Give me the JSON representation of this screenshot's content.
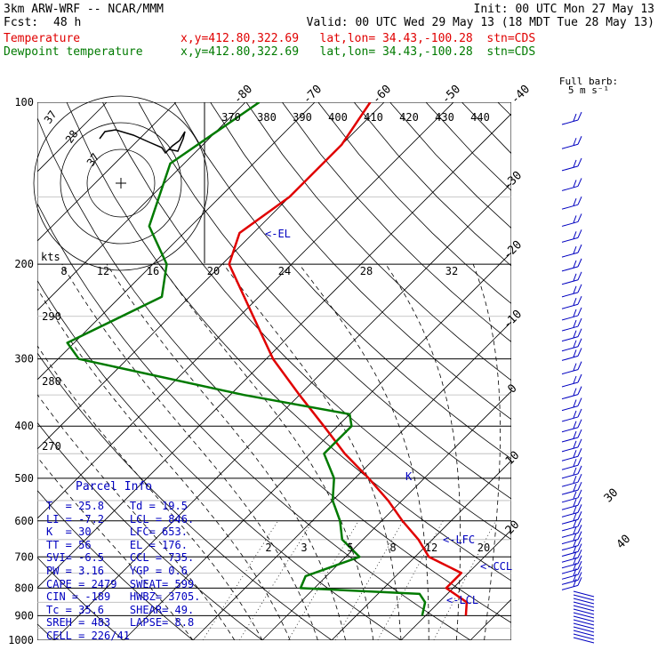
{
  "header": {
    "model": "3km ARW-WRF -- NCAR/MMM",
    "init": "Init: 00 UTC Mon 27 May 13",
    "fcst_label": "Fcst:",
    "fcst_value": "48 h",
    "valid": "Valid: 00 UTC Wed 29 May 13 (18 MDT Tue 28 May 13)",
    "temp_label": "Temperature",
    "temp_info": "x,y=412.80,322.69   lat,lon= 34.43,-100.28  stn=CDS",
    "dew_label": "Dewpoint temperature",
    "dew_info": "x,y=412.80,322.69   lat,lon= 34.43,-100.28  stn=CDS"
  },
  "colors": {
    "temperature": "#e00000",
    "dewpoint": "#007a00",
    "panel": "#0000c0",
    "wind": "#0000c0"
  },
  "chart_data": {
    "type": "line",
    "title": "",
    "ylabel": "",
    "xlabel": "",
    "pressure_ticks": [
      "100",
      "200",
      "300",
      "400",
      "500",
      "600",
      "700",
      "800",
      "900",
      "1000"
    ],
    "temp_ticks": [
      "-80",
      "-70",
      "-60",
      "-50",
      "-40",
      "-30",
      "-20",
      "-10",
      "0",
      "10",
      "20",
      "30",
      "40"
    ],
    "theta_ticks": [
      "370",
      "380",
      "390",
      "400",
      "410",
      "420",
      "430",
      "440"
    ],
    "theta_low_ticks": [
      "290",
      "280",
      "270"
    ],
    "mixing_ticks": [
      "2",
      "3",
      "5",
      "8",
      "12",
      "20"
    ],
    "hodo_speed_ticks": [
      "8",
      "12",
      "16",
      "20",
      "24",
      "28",
      "32"
    ],
    "hodo_unit": "kts",
    "hodo_ring_labels": [
      "37",
      "28",
      "37"
    ],
    "barb_title": "Full barb:",
    "barb_unit": "5 m s⁻¹",
    "level_labels": {
      "el": "<-EL",
      "lfc": "<-LFC",
      "ccl": "<-CCL",
      "lcl": "<-LCL",
      "k": "K"
    },
    "series": [
      {
        "name": "Temperature",
        "points": [
          [
            100,
            -62
          ],
          [
            120,
            -60
          ],
          [
            150,
            -60
          ],
          [
            175,
            -62
          ],
          [
            200,
            -59
          ],
          [
            250,
            -48
          ],
          [
            300,
            -39
          ],
          [
            350,
            -30
          ],
          [
            400,
            -22
          ],
          [
            450,
            -15
          ],
          [
            500,
            -8
          ],
          [
            550,
            -2
          ],
          [
            600,
            3
          ],
          [
            650,
            8
          ],
          [
            700,
            12
          ],
          [
            750,
            19
          ],
          [
            800,
            19
          ],
          [
            850,
            24
          ],
          [
            900,
            25.8
          ]
        ]
      },
      {
        "name": "Dewpoint temperature",
        "points": [
          [
            100,
            -78
          ],
          [
            130,
            -82
          ],
          [
            170,
            -76
          ],
          [
            200,
            -68
          ],
          [
            230,
            -64
          ],
          [
            280,
            -71
          ],
          [
            300,
            -67
          ],
          [
            350,
            -38
          ],
          [
            380,
            -20
          ],
          [
            400,
            -18
          ],
          [
            450,
            -18
          ],
          [
            500,
            -13
          ],
          [
            550,
            -10
          ],
          [
            600,
            -6
          ],
          [
            650,
            -3
          ],
          [
            700,
            2
          ],
          [
            760,
            -3
          ],
          [
            800,
            -2
          ],
          [
            820,
            16
          ],
          [
            850,
            18
          ],
          [
            900,
            19.5
          ]
        ]
      }
    ]
  },
  "parcel": {
    "title": "Parcel Info",
    "rows": [
      [
        "T  =",
        "25.8",
        "Td =",
        "19.5"
      ],
      [
        "LI =",
        "-7.2",
        "LCL =",
        "846."
      ],
      [
        "K  =",
        "30",
        "LFC=",
        "653."
      ],
      [
        "TT =",
        "56",
        "EL =",
        "176."
      ],
      [
        "SVI=",
        "-6.5",
        "CCL =",
        "735."
      ],
      [
        "PW =",
        "3.16",
        "YGP =",
        "0.6"
      ],
      [
        "CAPE =",
        "2479",
        "SWEAT=",
        "599"
      ],
      [
        "CIN =",
        "-189",
        "HWBZ=",
        "3705."
      ],
      [
        "Tc =",
        "35.6",
        "SHEAR=",
        "49."
      ],
      [
        "SREH =",
        "483",
        "LAPSE=",
        "8.8"
      ],
      [
        "CELL =",
        "226/41",
        "",
        ""
      ]
    ]
  }
}
